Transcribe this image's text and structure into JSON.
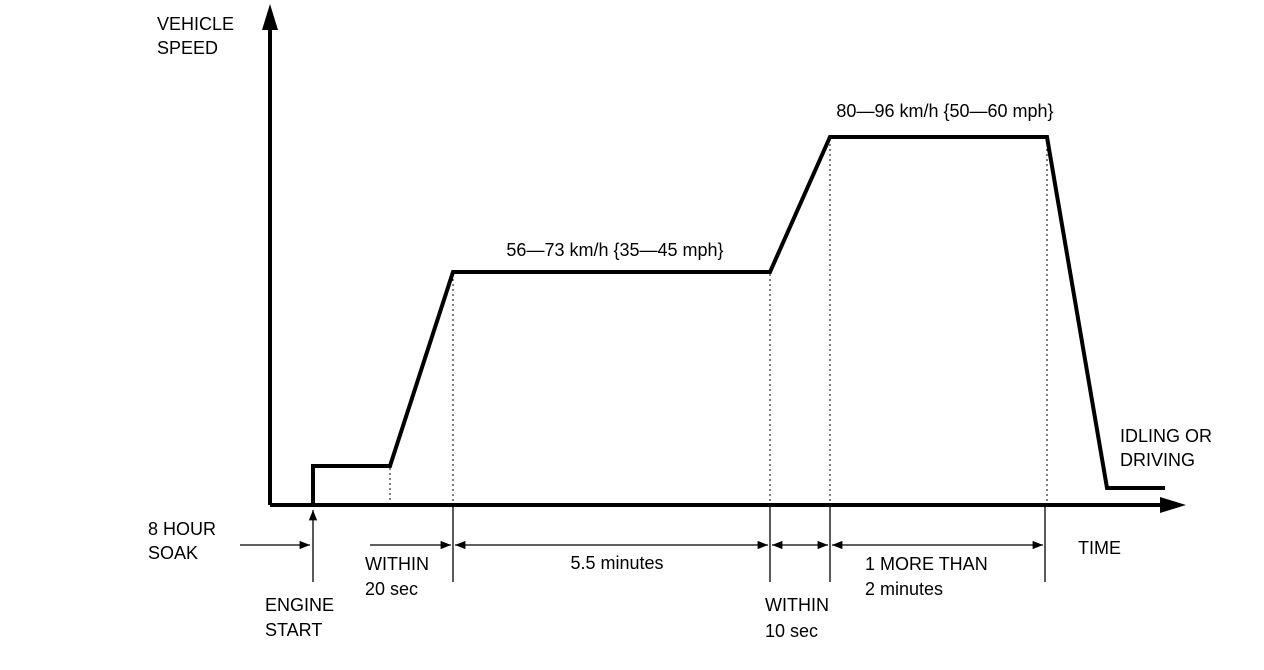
{
  "axis": {
    "y_label": [
      "VEHICLE",
      "SPEED"
    ],
    "x_label": "TIME"
  },
  "stages": {
    "speed_1": "56—73 km/h {35—45 mph}",
    "speed_2": "80—96 km/h {50—60 mph}",
    "end": [
      "IDLING OR",
      "DRIVING"
    ]
  },
  "timeline": {
    "soak": [
      "8 HOUR",
      "SOAK"
    ],
    "engine_start": [
      "ENGINE",
      "START"
    ],
    "within_20": [
      "WITHIN",
      "20 sec"
    ],
    "cruise_1": "5.5 minutes",
    "within_10": [
      "WITHIN",
      "10 sec"
    ],
    "cruise_2": [
      "1 MORE THAN",
      "2 minutes"
    ]
  }
}
